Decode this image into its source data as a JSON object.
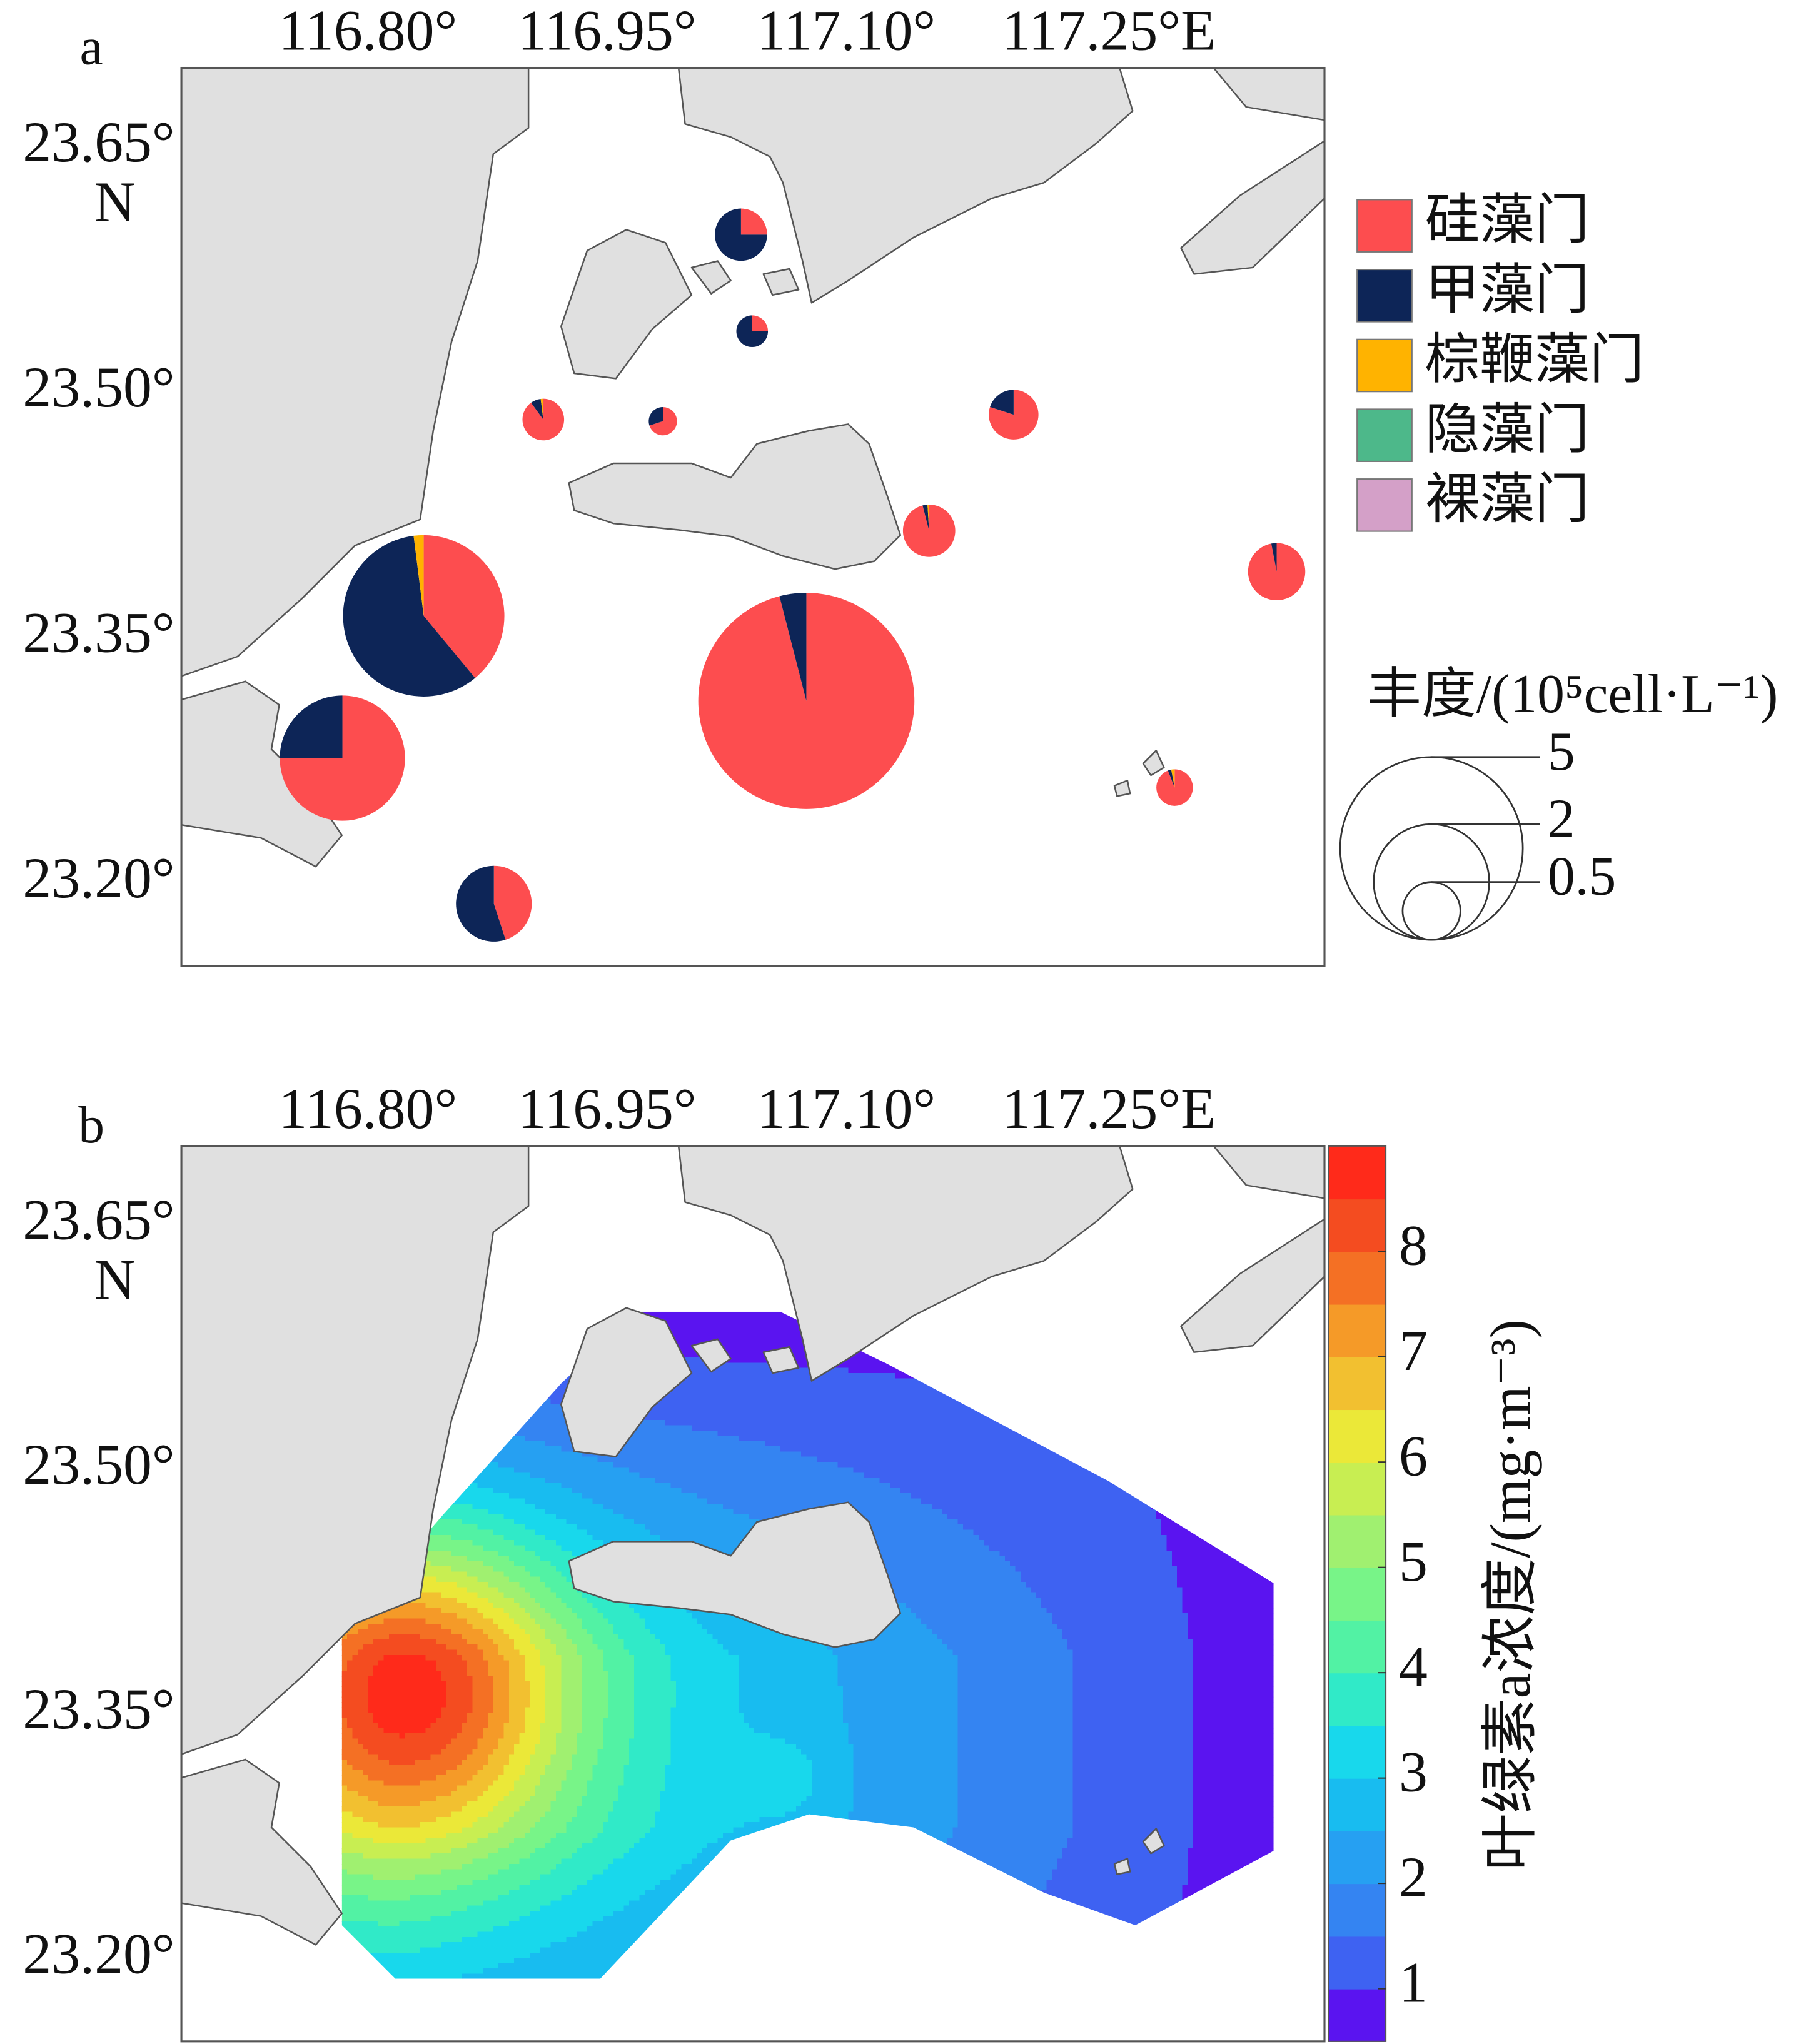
{
  "chart_data": [
    {
      "type": "pie-map",
      "panel_label": "a",
      "xlim": [
        116.683,
        117.4
      ],
      "ylim": [
        23.15,
        23.699
      ],
      "xticks": [
        {
          "value": 116.8,
          "label": "116.80°"
        },
        {
          "value": 116.95,
          "label": "116.95°"
        },
        {
          "value": 117.1,
          "label": "117.10°"
        },
        {
          "value": 117.25,
          "label": "117.25°E"
        }
      ],
      "yticks": [
        {
          "value": 23.2,
          "label": "23.20°"
        },
        {
          "value": 23.35,
          "label": "23.35°"
        },
        {
          "value": 23.5,
          "label": "23.50°"
        },
        {
          "value": 23.65,
          "label": "23.65°"
        }
      ],
      "y_axis_label": "N",
      "stations": [
        {
          "lon": 117.034,
          "lat": 23.597,
          "abundance": 0.41
        },
        {
          "lon": 117.041,
          "lat": 23.538,
          "abundance": 0.15
        },
        {
          "lon": 116.91,
          "lat": 23.484,
          "abundance": 0.26
        },
        {
          "lon": 116.985,
          "lat": 23.483,
          "abundance": 0.12
        },
        {
          "lon": 117.205,
          "lat": 23.487,
          "abundance": 0.37
        },
        {
          "lon": 117.152,
          "lat": 23.416,
          "abundance": 0.41
        },
        {
          "lon": 117.37,
          "lat": 23.391,
          "abundance": 0.49
        },
        {
          "lon": 116.835,
          "lat": 23.364,
          "abundance": 3.9
        },
        {
          "lon": 117.075,
          "lat": 23.312,
          "abundance": 7.0
        },
        {
          "lon": 116.784,
          "lat": 23.277,
          "abundance": 2.35
        },
        {
          "lon": 117.306,
          "lat": 23.259,
          "abundance": 0.2
        },
        {
          "lon": 116.879,
          "lat": 23.188,
          "abundance": 0.86
        }
      ],
      "series": [
        {
          "name": "硅藻门",
          "color": "#fd4d4f",
          "values": [
            25,
            25,
            90,
            70,
            80,
            96,
            97,
            39,
            96,
            75,
            94,
            45
          ]
        },
        {
          "name": "甲藻门",
          "color": "#0d2557",
          "values": [
            75,
            75,
            8,
            30,
            20,
            3,
            3,
            59,
            4,
            25,
            3,
            55
          ]
        },
        {
          "name": "棕鞭藻门",
          "color": "#ffb300",
          "values": [
            0,
            0,
            2,
            0,
            0,
            1,
            0,
            2,
            0,
            0,
            3,
            0
          ]
        },
        {
          "name": "隐藻门",
          "color": "#4db88a",
          "values": [
            0,
            0,
            0,
            0,
            0,
            0,
            0,
            0,
            0,
            0,
            0,
            0
          ]
        },
        {
          "name": "裸藻门",
          "color": "#d4a0c8",
          "values": [
            0,
            0,
            0,
            0,
            0,
            0,
            0,
            0,
            0,
            0,
            0,
            0
          ]
        }
      ],
      "size_legend_title": "丰度/(10⁵cell·L⁻¹)",
      "size_legend": [
        5,
        2,
        0.5
      ]
    },
    {
      "type": "contour-map",
      "panel_label": "b",
      "xlim": [
        116.683,
        117.4
      ],
      "ylim": [
        23.15,
        23.699
      ],
      "xticks": [
        {
          "value": 116.8,
          "label": "116.80°"
        },
        {
          "value": 116.95,
          "label": "116.95°"
        },
        {
          "value": 117.1,
          "label": "117.10°"
        },
        {
          "value": 117.25,
          "label": "117.25°E"
        }
      ],
      "yticks": [
        {
          "value": 23.2,
          "label": "23.20°"
        },
        {
          "value": 23.35,
          "label": "23.35°"
        },
        {
          "value": 23.5,
          "label": "23.50°"
        },
        {
          "value": 23.65,
          "label": "23.65°"
        }
      ],
      "y_axis_label": "N",
      "colorbar_label": "叶绿素a浓度/(mg·m⁻³)",
      "levels": [
        0.5,
        1,
        1.5,
        2,
        2.5,
        3,
        3.5,
        4,
        4.5,
        5,
        5.5,
        6,
        6.5,
        7,
        7.5,
        8,
        8.5,
        9
      ],
      "colors": [
        "#5a14f0",
        "#3e62f2",
        "#3484f2",
        "#26a0f2",
        "#18bcf0",
        "#18d8ec",
        "#30eac8",
        "#52f2a4",
        "#78f488",
        "#a0f070",
        "#c8ee52",
        "#ebe838",
        "#f2c030",
        "#f59a28",
        "#f47024",
        "#f44c20",
        "#ff2a1a"
      ],
      "colorbar_ticks": [
        1,
        2,
        3,
        4,
        5,
        6,
        7,
        8
      ]
    }
  ]
}
